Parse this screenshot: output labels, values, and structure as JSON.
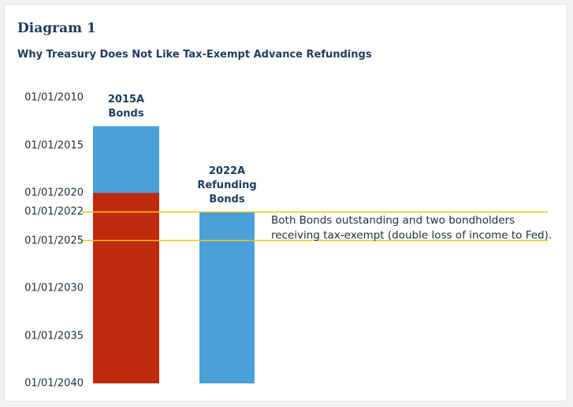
{
  "title": "Diagram 1",
  "subtitle": "Why Treasury Does Not Like Tax-Exempt Advance Refundings",
  "chart_data": {
    "type": "range-bar",
    "ylim": [
      2010,
      2040
    ],
    "inverted": true,
    "yticks": [
      {
        "value": 2010,
        "label": "01/01/2010"
      },
      {
        "value": 2015,
        "label": "01/01/2015"
      },
      {
        "value": 2020,
        "label": "01/01/2020"
      },
      {
        "value": 2022,
        "label": "01/01/2022"
      },
      {
        "value": 2025,
        "label": "01/01/2025"
      },
      {
        "value": 2030,
        "label": "01/01/2030"
      },
      {
        "value": 2035,
        "label": "01/01/2035"
      },
      {
        "value": 2040,
        "label": "01/01/2040"
      }
    ],
    "bars": [
      {
        "category": [
          "2015A",
          "Bonds"
        ],
        "segments": [
          {
            "start": 2013,
            "end": 2020,
            "color": "#4b9fd9"
          },
          {
            "start": 2020,
            "end": 2040,
            "color": "#be2a0c"
          }
        ]
      },
      {
        "category": [
          "2022A",
          "Refunding",
          "Bonds"
        ],
        "segments": [
          {
            "start": 2022,
            "end": 2040,
            "color": "#4b9fd9"
          }
        ]
      }
    ],
    "reference_lines": [
      2022,
      2025
    ],
    "reference_color": "#f5c518",
    "annotation": [
      "Both Bonds outstanding and two bondholders",
      "receiving tax-exempt (double loss of income to Fed)."
    ]
  }
}
